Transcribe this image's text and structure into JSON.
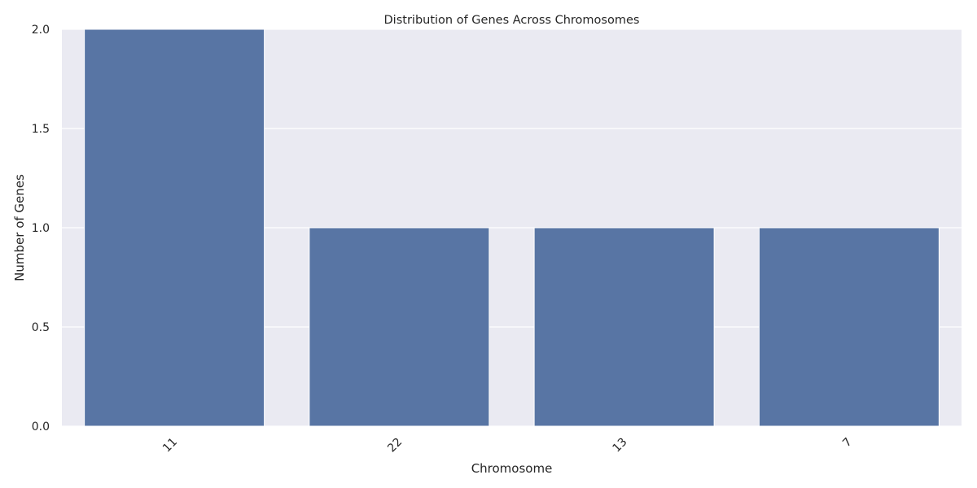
{
  "chart_data": {
    "type": "bar",
    "title": "Distribution of Genes Across Chromosomes",
    "xlabel": "Chromosome",
    "ylabel": "Number of Genes",
    "categories": [
      "11",
      "22",
      "13",
      "7"
    ],
    "values": [
      2,
      1,
      1,
      1
    ],
    "ylim": [
      0,
      2.0
    ],
    "yticks": [
      "0.0",
      "0.5",
      "1.0",
      "1.5",
      "2.0"
    ],
    "grid": true,
    "legend": "none",
    "bar_color": "#5875a4",
    "background_color": "#eaeaf2",
    "grid_color": "#ffffff"
  }
}
